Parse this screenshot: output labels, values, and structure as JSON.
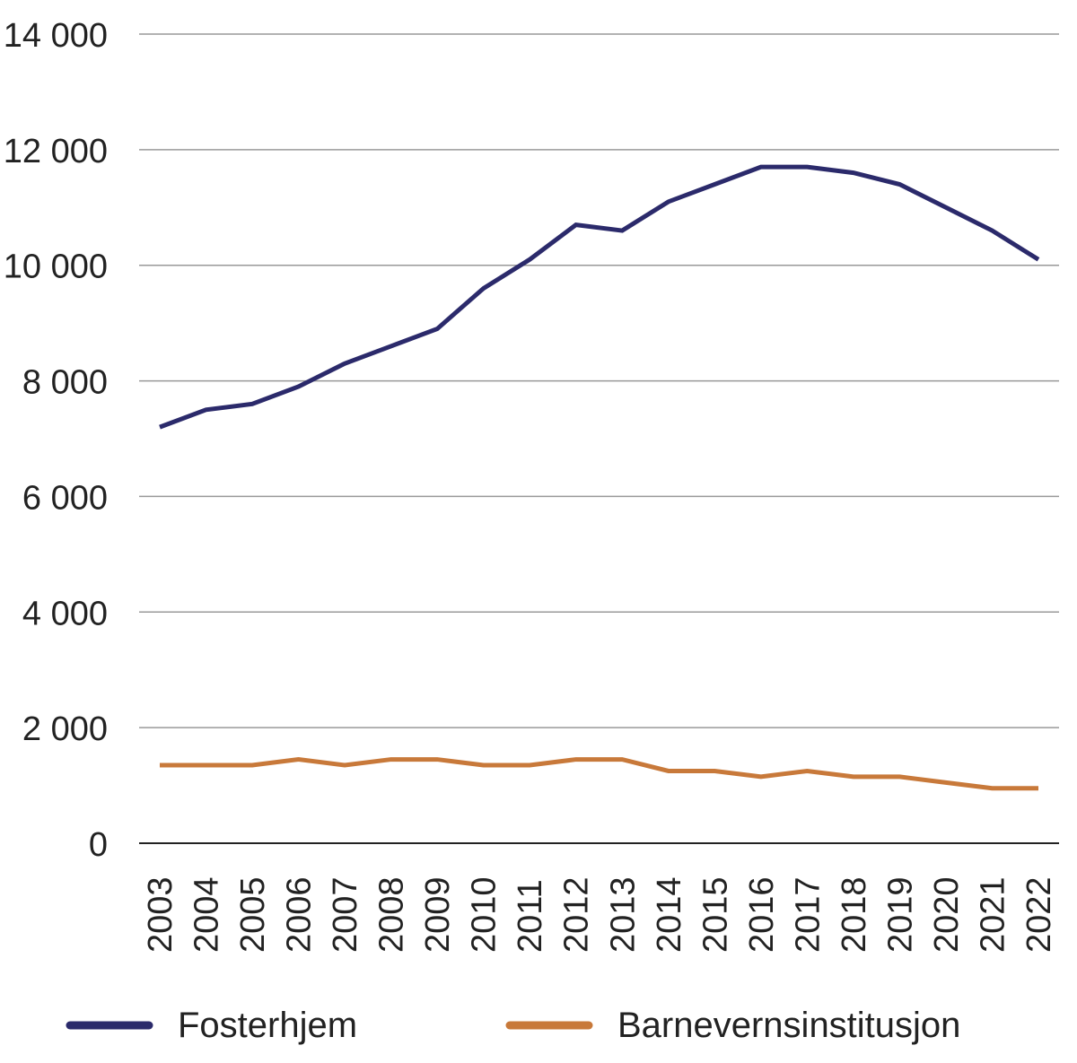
{
  "chart_data": {
    "type": "line",
    "x": [
      "2003",
      "2004",
      "2005",
      "2006",
      "2007",
      "2008",
      "2009",
      "2010",
      "2011",
      "2012",
      "2013",
      "2014",
      "2015",
      "2016",
      "2017",
      "2018",
      "2019",
      "2020",
      "2021",
      "2022"
    ],
    "yticks": [
      "0",
      "2 000",
      "4 000",
      "6 000",
      "8 000",
      "10 000",
      "12 000",
      "14 000"
    ],
    "ylim": [
      0,
      14000
    ],
    "series": [
      {
        "name": "Fosterhjem",
        "color": "#2b2a6b",
        "values": [
          7200,
          7500,
          7600,
          7900,
          8300,
          8600,
          8900,
          9600,
          10100,
          10700,
          10600,
          11100,
          11400,
          11700,
          11700,
          11600,
          11400,
          11000,
          10600,
          10100
        ]
      },
      {
        "name": "Barnevernsinstitusjon",
        "color": "#c8793a",
        "values": [
          1350,
          1350,
          1350,
          1450,
          1350,
          1450,
          1450,
          1350,
          1350,
          1450,
          1450,
          1250,
          1250,
          1150,
          1250,
          1150,
          1150,
          1050,
          950,
          950
        ]
      }
    ]
  }
}
